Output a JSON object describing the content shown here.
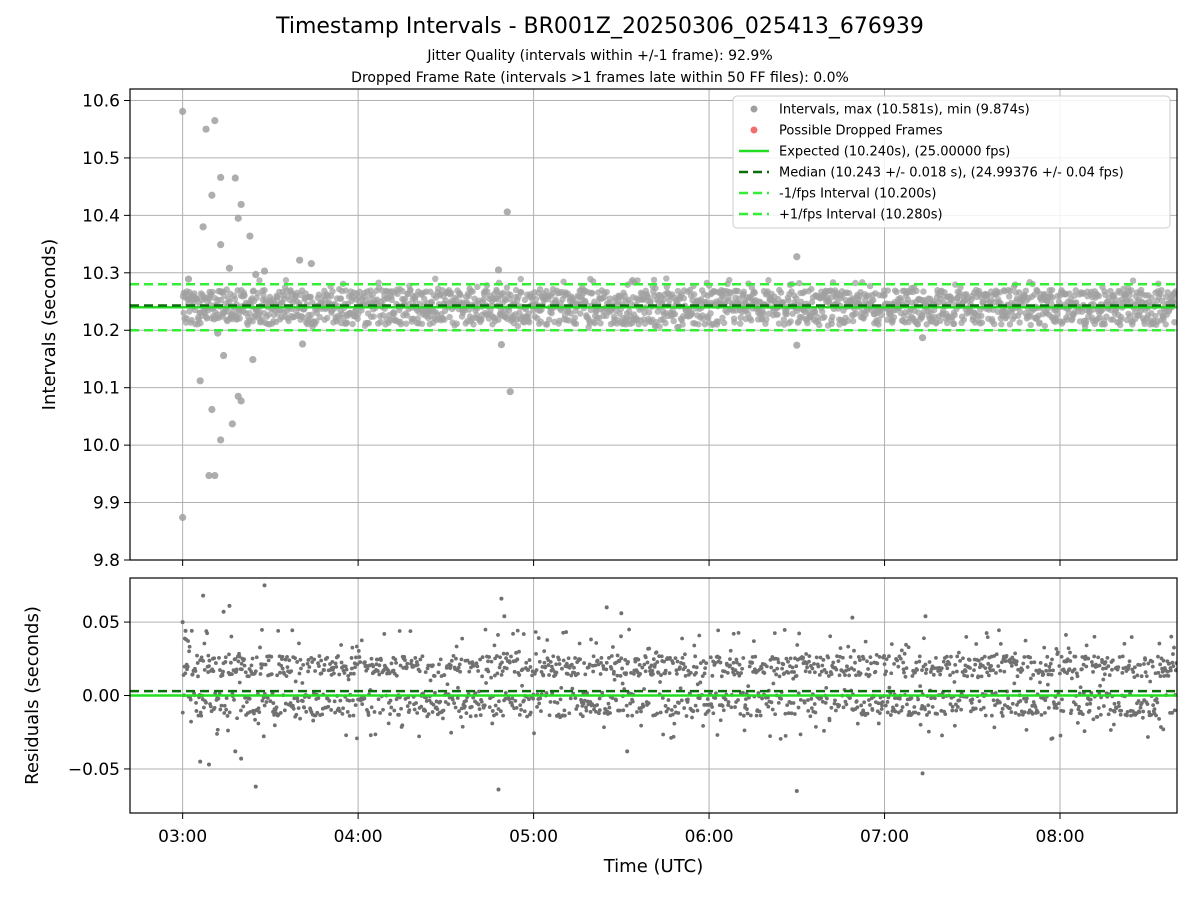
{
  "figure": {
    "title": "Timestamp Intervals - BR001Z_20250306_025413_676939",
    "subtitle_1": "Jitter Quality (intervals within +/-1 frame): 92.9%",
    "subtitle_2": "Dropped Frame Rate (intervals >1 frames late within 50 FF files): 0.0%"
  },
  "colors": {
    "points": "#808080",
    "dropped": "#f07070",
    "expected": "#22dd22",
    "median": "#0a6e0a",
    "interval_band": "#33ee33",
    "grid": "#b0b0b0"
  },
  "chart_data": [
    {
      "type": "scatter",
      "panel": "top",
      "ylabel": "Intervals (seconds)",
      "xlim": [
        "02:42",
        "08:40"
      ],
      "ylim": [
        9.8,
        10.62
      ],
      "yticks": [
        9.8,
        9.9,
        10.0,
        10.1,
        10.2,
        10.3,
        10.4,
        10.5,
        10.6
      ],
      "ytick_labels": [
        "9.8",
        "9.9",
        "10.0",
        "10.1",
        "10.2",
        "10.3",
        "10.4",
        "10.5",
        "10.6"
      ],
      "grid": true,
      "legend_position": "top-right",
      "legend": [
        {
          "label": "Intervals, max (10.581s), min (9.874s)",
          "kind": "marker",
          "color": "#a0a0a0"
        },
        {
          "label": "Possible Dropped Frames",
          "kind": "marker",
          "color": "#f07070"
        },
        {
          "label": "Expected (10.240s), (25.00000 fps)",
          "kind": "line",
          "color": "#22dd22",
          "dash": "solid"
        },
        {
          "label": "Median (10.243 +/- 0.018 s), (24.99376 +/- 0.04 fps)",
          "kind": "line",
          "color": "#0a6e0a",
          "dash": "dashed"
        },
        {
          "label": "-1/fps Interval (10.200s)",
          "kind": "line",
          "color": "#33ee33",
          "dash": "dashed"
        },
        {
          "label": "+1/fps Interval (10.280s)",
          "kind": "line",
          "color": "#33ee33",
          "dash": "dashed"
        }
      ],
      "reference_lines": [
        {
          "name": "expected",
          "y": 10.24
        },
        {
          "name": "median",
          "y": 10.243
        },
        {
          "name": "minus_interval",
          "y": 10.2
        },
        {
          "name": "plus_interval",
          "y": 10.28
        }
      ],
      "series": [
        {
          "name": "Intervals",
          "note_dense_band": "approximately 2000 points spread between 10.20 and 10.29 s across 03:00-08:40",
          "points": [
            [
              "03:00",
              10.581
            ],
            [
              "03:00",
              9.874
            ],
            [
              "03:02",
              10.289
            ],
            [
              "03:06",
              10.112
            ],
            [
              "03:07",
              10.38
            ],
            [
              "03:08",
              10.55
            ],
            [
              "03:09",
              9.947
            ],
            [
              "03:10",
              10.435
            ],
            [
              "03:10",
              10.062
            ],
            [
              "03:11",
              10.565
            ],
            [
              "03:11",
              9.947
            ],
            [
              "03:12",
              10.195
            ],
            [
              "03:13",
              10.466
            ],
            [
              "03:13",
              10.349
            ],
            [
              "03:13",
              10.009
            ],
            [
              "03:14",
              10.156
            ],
            [
              "03:16",
              10.308
            ],
            [
              "03:17",
              10.037
            ],
            [
              "03:18",
              10.465
            ],
            [
              "03:19",
              10.395
            ],
            [
              "03:19",
              10.085
            ],
            [
              "03:20",
              10.419
            ],
            [
              "03:20",
              10.077
            ],
            [
              "03:23",
              10.364
            ],
            [
              "03:24",
              10.149
            ],
            [
              "03:25",
              10.297
            ],
            [
              "03:28",
              10.303
            ],
            [
              "03:40",
              10.322
            ],
            [
              "03:41",
              10.176
            ],
            [
              "03:44",
              10.316
            ],
            [
              "04:48",
              10.305
            ],
            [
              "04:49",
              10.175
            ],
            [
              "04:51",
              10.406
            ],
            [
              "04:52",
              10.093
            ],
            [
              "06:30",
              10.328
            ],
            [
              "06:30",
              10.174
            ],
            [
              "07:13",
              10.187
            ]
          ]
        },
        {
          "name": "Possible Dropped Frames",
          "points": []
        }
      ]
    },
    {
      "type": "scatter",
      "panel": "bottom",
      "xlabel": "Time (UTC)",
      "ylabel": "Residuals (seconds)",
      "xlim": [
        "02:42",
        "08:40"
      ],
      "ylim": [
        -0.08,
        0.08
      ],
      "yticks": [
        -0.05,
        0.0,
        0.05
      ],
      "ytick_labels": [
        "−0.05",
        "0.00",
        "0.05"
      ],
      "xticks": [
        "03:00",
        "04:00",
        "05:00",
        "06:00",
        "07:00",
        "08:00"
      ],
      "grid": true,
      "reference_lines": [
        {
          "name": "expected",
          "y": 0.0
        },
        {
          "name": "median",
          "y": 0.003
        }
      ],
      "series": [
        {
          "name": "Residuals",
          "note_dense_band": "approximately 2000 points spread between -0.03 and +0.045 s",
          "points": [
            [
              "03:00",
              0.05
            ],
            [
              "03:01",
              0.044
            ],
            [
              "03:06",
              -0.045
            ],
            [
              "03:07",
              0.068
            ],
            [
              "03:09",
              -0.047
            ],
            [
              "03:14",
              0.057
            ],
            [
              "03:16",
              0.061
            ],
            [
              "03:18",
              -0.038
            ],
            [
              "03:20",
              -0.043
            ],
            [
              "03:25",
              -0.062
            ],
            [
              "03:28",
              0.075
            ],
            [
              "04:48",
              -0.064
            ],
            [
              "04:49",
              0.066
            ],
            [
              "04:50",
              0.054
            ],
            [
              "05:25",
              0.06
            ],
            [
              "05:30",
              0.056
            ],
            [
              "05:32",
              -0.038
            ],
            [
              "06:30",
              -0.065
            ],
            [
              "06:49",
              0.053
            ],
            [
              "07:13",
              -0.053
            ],
            [
              "07:14",
              0.054
            ]
          ]
        }
      ]
    }
  ]
}
